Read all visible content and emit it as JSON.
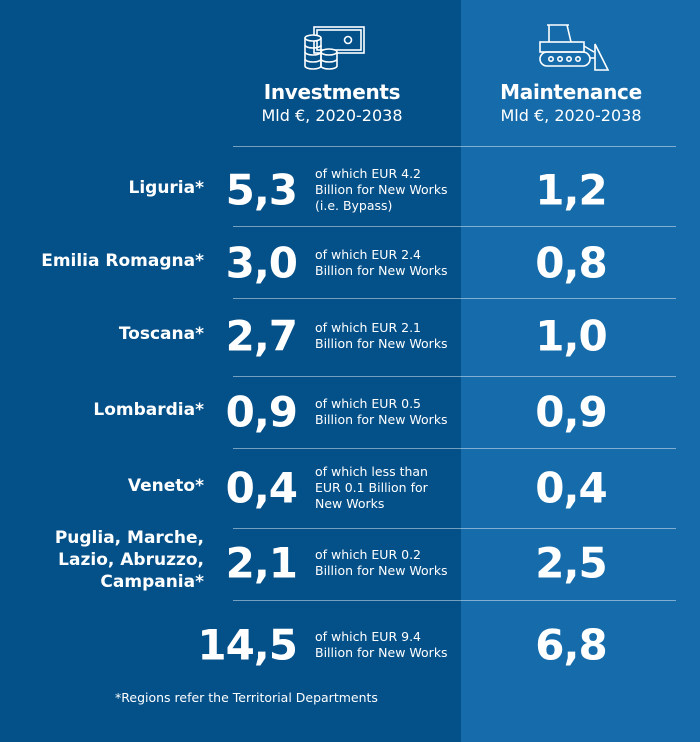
{
  "headers": {
    "investments": {
      "title": "Investments",
      "subtitle": "Mld €, 2020-2038",
      "icon": "money-coins-icon"
    },
    "maintenance": {
      "title": "Maintenance",
      "subtitle": "Mld €, 2020-2038",
      "icon": "bulldozer-icon"
    }
  },
  "rows": [
    {
      "region": "Liguria*",
      "investment": "5,3",
      "note": "of which EUR 4.2 Billion for New Works (i.e. Bypass)",
      "maintenance": "1,2"
    },
    {
      "region": "Emilia Romagna*",
      "investment": "3,0",
      "note": "of which EUR 2.4 Billion for New Works",
      "maintenance": "0,8"
    },
    {
      "region": "Toscana*",
      "investment": "2,7",
      "note": "of which EUR 2.1 Billion for New Works",
      "maintenance": "1,0"
    },
    {
      "region": "Lombardia*",
      "investment": "0,9",
      "note": "of which EUR 0.5 Billion for New Works",
      "maintenance": "0,9"
    },
    {
      "region": "Veneto*",
      "investment": "0,4",
      "note": "of which less than EUR 0.1 Billion for New Works",
      "maintenance": "0,4"
    },
    {
      "region": "Puglia, Marche, Lazio, Abruzzo, Campania*",
      "investment": "2,1",
      "note": "of which EUR 0.2 Billion for New Works",
      "maintenance": "2,5"
    }
  ],
  "total": {
    "investment": "14,5",
    "note": "of which EUR 9.4 Billion for New Works",
    "maintenance": "6,8"
  },
  "footnote": "*Regions refer the Territorial Departments"
}
